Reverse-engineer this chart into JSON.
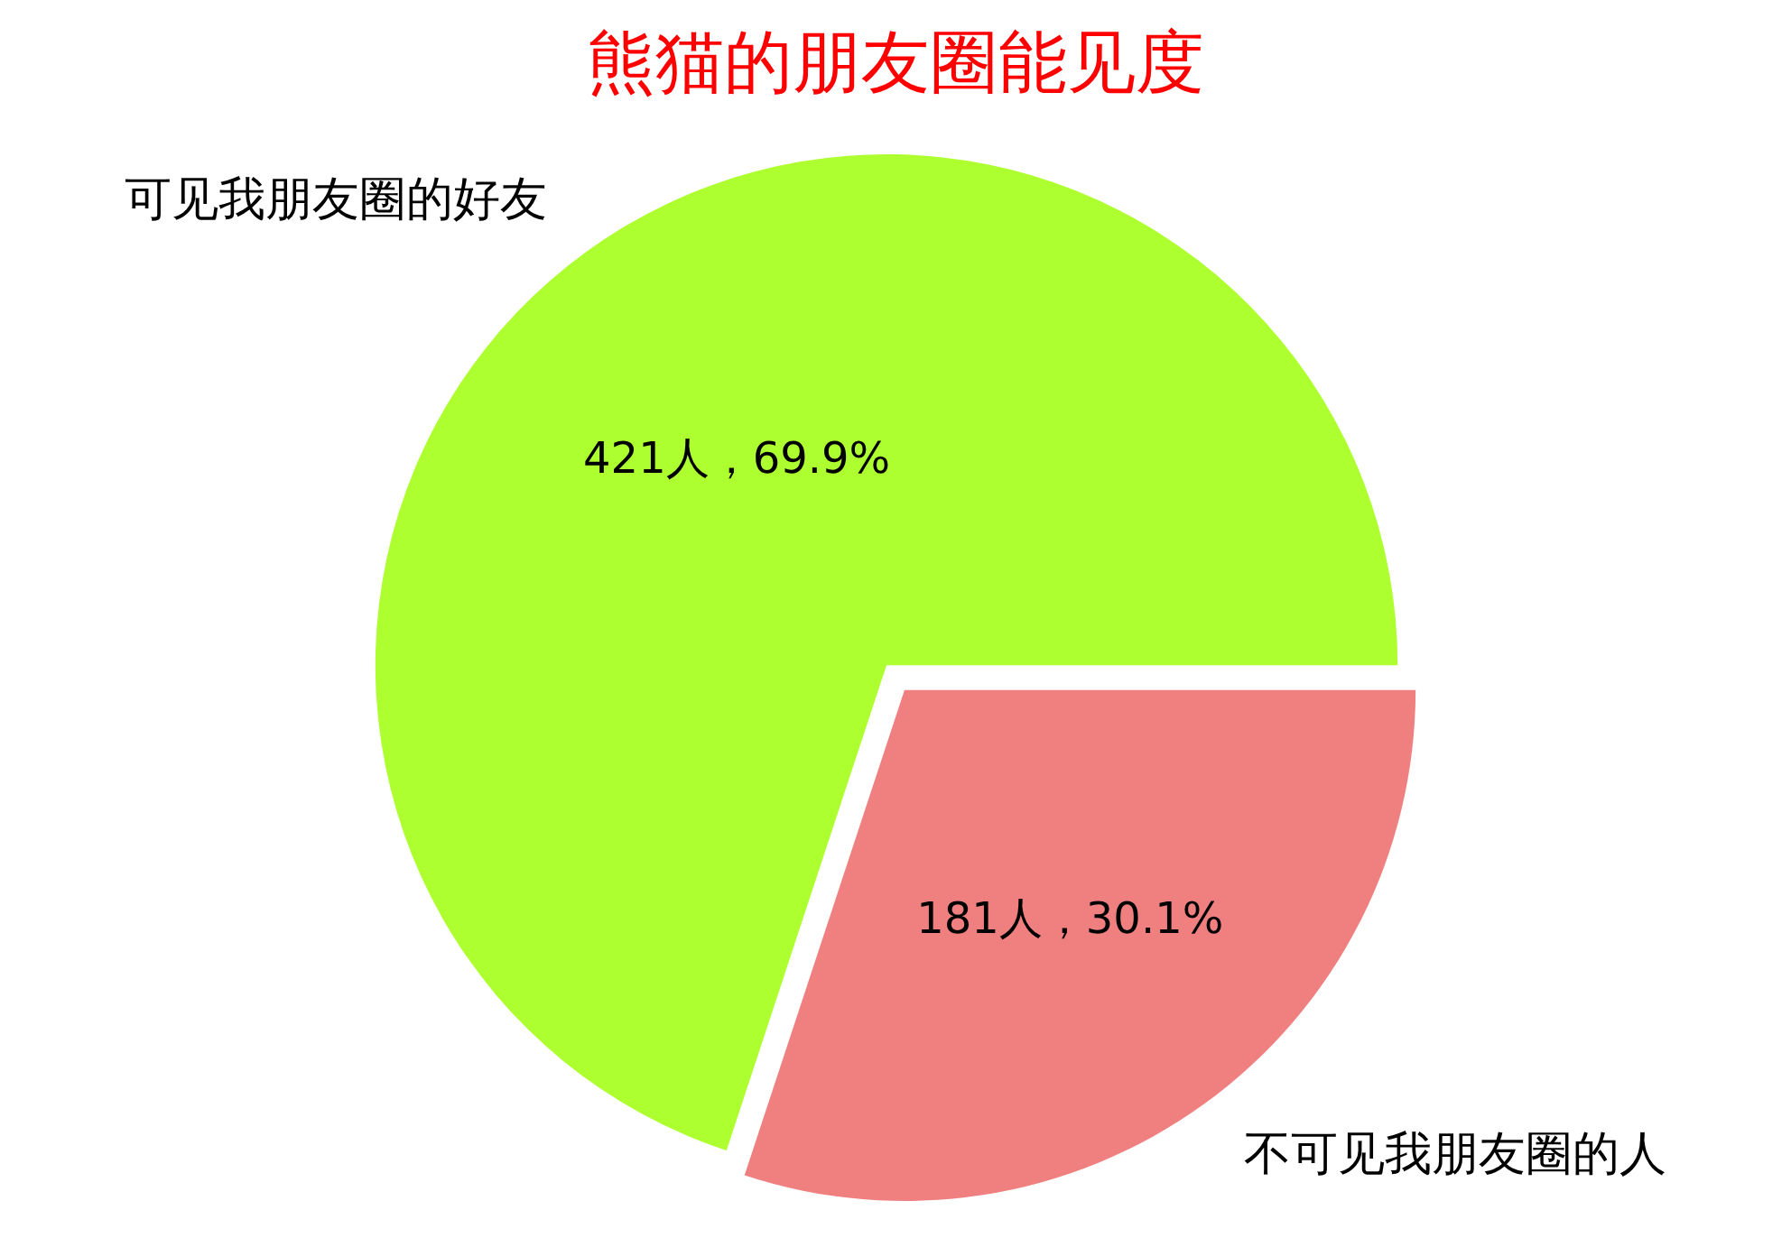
{
  "chart_data": {
    "type": "pie",
    "title": "熊猫的朋友圈能见度",
    "categories": [
      "可见我朋友圈的好友",
      "不可见我朋友圈的人"
    ],
    "values": [
      421,
      181
    ],
    "colors": [
      "#adff2f",
      "#f08080"
    ],
    "value_labels": [
      "421人，69.9%",
      "181人，30.1%"
    ],
    "legend": false
  }
}
